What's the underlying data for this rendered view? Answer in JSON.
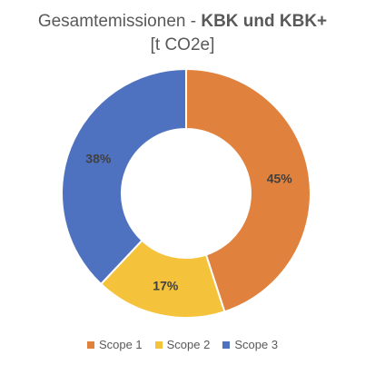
{
  "chart_data": {
    "type": "pie",
    "title_plain": "Gesamtemissionen - ",
    "title_bold": "KBK und KBK+",
    "subtitle": "[t CO2e]",
    "slices": [
      {
        "label": "Scope 1",
        "value": 45,
        "data_label": "45%",
        "color": "#E0823D"
      },
      {
        "label": "Scope 2",
        "value": 17,
        "data_label": "17%",
        "color": "#F4C33B"
      },
      {
        "label": "Scope 3",
        "value": 38,
        "data_label": "38%",
        "color": "#4F72C0"
      }
    ],
    "legend_position": "bottom"
  }
}
